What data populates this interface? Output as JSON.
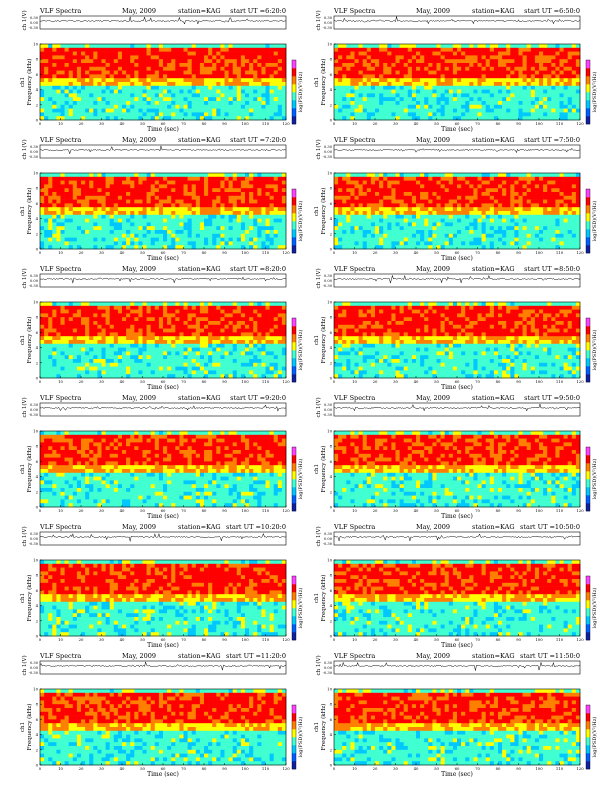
{
  "page": {
    "header_left": "VLF Spectra",
    "month": "May, 2009",
    "station": "station=KAG",
    "ut_prefix": "start  UT =",
    "ylabel_top": "ch 1(V)",
    "ylabel_spec": "ch1\nFrequency  (kHz)",
    "xlabel": "Time  (sec)",
    "cbar_label": "log(PSD)(V²/Hz)"
  },
  "colors": {
    "spectrum_scale": [
      "#1020a0",
      "#0060ff",
      "#00c8ff",
      "#40ffd0",
      "#ffff00",
      "#ff8000",
      "#ff0000",
      "#ff40ff"
    ]
  },
  "chart_data": [
    {
      "type": "heatmap",
      "title": "VLF Spectra   May, 2009   station=KAG   start  UT =6:20:0",
      "ut": "6:20:0",
      "xlabel": "Time  (sec)",
      "ylabel": "Frequency  (kHz)",
      "xlim": [
        0,
        120
      ],
      "ylim": [
        0,
        10
      ],
      "xticks": [
        0,
        10,
        20,
        30,
        40,
        50,
        60,
        70,
        80,
        90,
        100,
        110,
        120
      ],
      "yticks": [
        0,
        2,
        4,
        6,
        8,
        10
      ],
      "top_ylabel": "ch 1(V)",
      "top_yticks": [
        "0.30",
        "0.00",
        "-0.30"
      ],
      "cbar_label": "log(PSD)(V²/Hz)"
    },
    {
      "type": "heatmap",
      "title": "VLF Spectra   May, 2009   station=KAG   start  UT =6:50:0",
      "ut": "6:50:0",
      "xlabel": "Time  (sec)",
      "ylabel": "Frequency  (kHz)",
      "xlim": [
        0,
        120
      ],
      "ylim": [
        0,
        10
      ],
      "xticks": [
        0,
        10,
        20,
        30,
        40,
        50,
        60,
        70,
        80,
        90,
        100,
        110,
        120
      ],
      "yticks": [
        0,
        2,
        4,
        6,
        8,
        10
      ],
      "top_ylabel": "ch 1(V)",
      "top_yticks": [
        "0.30",
        "0.00",
        "-0.30"
      ],
      "cbar_label": "log(PSD)(V²/Hz)"
    },
    {
      "type": "heatmap",
      "title": "VLF Spectra   May, 2009   station=KAG   start  UT =7:20:0",
      "ut": "7:20:0",
      "xlabel": "Time  (sec)",
      "ylabel": "Frequency  (kHz)",
      "xlim": [
        0,
        120
      ],
      "ylim": [
        0,
        10
      ],
      "xticks": [
        0,
        10,
        20,
        30,
        40,
        50,
        60,
        70,
        80,
        90,
        100,
        110,
        120
      ],
      "yticks": [
        0,
        2,
        4,
        6,
        8,
        10
      ],
      "top_ylabel": "ch 1(V)",
      "top_yticks": [
        "0.30",
        "0.00",
        "-0.30"
      ],
      "cbar_label": "log(PSD)(V²/Hz)"
    },
    {
      "type": "heatmap",
      "title": "VLF Spectra   May, 2009   station=KAG   start  UT =7:50:0",
      "ut": "7:50:0",
      "xlabel": "Time  (sec)",
      "ylabel": "Frequency  (kHz)",
      "xlim": [
        0,
        120
      ],
      "ylim": [
        0,
        10
      ],
      "xticks": [
        0,
        10,
        20,
        30,
        40,
        50,
        60,
        70,
        80,
        90,
        100,
        110,
        120
      ],
      "yticks": [
        0,
        2,
        4,
        6,
        8,
        10
      ],
      "top_ylabel": "ch 1(V)",
      "top_yticks": [
        "0.30",
        "0.00",
        "-0.30"
      ],
      "cbar_label": "log(PSD)(V²/Hz)"
    },
    {
      "type": "heatmap",
      "title": "VLF Spectra   May, 2009   station=KAG   start  UT =8:20:0",
      "ut": "8:20:0",
      "xlabel": "Time  (sec)",
      "ylabel": "Frequency  (kHz)",
      "xlim": [
        0,
        120
      ],
      "ylim": [
        0,
        10
      ],
      "xticks": [
        0,
        10,
        20,
        30,
        40,
        50,
        60,
        70,
        80,
        90,
        100,
        110,
        120
      ],
      "yticks": [
        0,
        2,
        4,
        6,
        8,
        10
      ],
      "top_ylabel": "ch 1(V)",
      "top_yticks": [
        "0.30",
        "0.00",
        "-0.30"
      ],
      "cbar_label": "log(PSD)(V²/Hz)"
    },
    {
      "type": "heatmap",
      "title": "VLF Spectra   May, 2009   station=KAG   start  UT =8:50:0",
      "ut": "8:50:0",
      "xlabel": "Time  (sec)",
      "ylabel": "Frequency  (kHz)",
      "xlim": [
        0,
        120
      ],
      "ylim": [
        0,
        10
      ],
      "xticks": [
        0,
        10,
        20,
        30,
        40,
        50,
        60,
        70,
        80,
        90,
        100,
        110,
        120
      ],
      "yticks": [
        0,
        2,
        4,
        6,
        8,
        10
      ],
      "top_ylabel": "ch 1(V)",
      "top_yticks": [
        "0.30",
        "0.00",
        "-0.30"
      ],
      "cbar_label": "log(PSD)(V²/Hz)"
    },
    {
      "type": "heatmap",
      "title": "VLF Spectra   May, 2009   station=KAG   start  UT =9:20:0",
      "ut": "9:20:0",
      "xlabel": "Time  (sec)",
      "ylabel": "Frequency  (kHz)",
      "xlim": [
        0,
        120
      ],
      "ylim": [
        0,
        10
      ],
      "xticks": [
        0,
        10,
        20,
        30,
        40,
        50,
        60,
        70,
        80,
        90,
        100,
        110,
        120
      ],
      "yticks": [
        0,
        2,
        4,
        6,
        8,
        10
      ],
      "top_ylabel": "ch 1(V)",
      "top_yticks": [
        "0.30",
        "0.00",
        "-0.30"
      ],
      "cbar_label": "log(PSD)(V²/Hz)"
    },
    {
      "type": "heatmap",
      "title": "VLF Spectra   May, 2009   station=KAG   start  UT =9:50:0",
      "ut": "9:50:0",
      "xlabel": "Time  (sec)",
      "ylabel": "Frequency  (kHz)",
      "xlim": [
        0,
        120
      ],
      "ylim": [
        0,
        10
      ],
      "xticks": [
        0,
        10,
        20,
        30,
        40,
        50,
        60,
        70,
        80,
        90,
        100,
        110,
        120
      ],
      "yticks": [
        0,
        2,
        4,
        6,
        8,
        10
      ],
      "top_ylabel": "ch 1(V)",
      "top_yticks": [
        "0.30",
        "0.00",
        "-0.30"
      ],
      "cbar_label": "log(PSD)(V²/Hz)"
    },
    {
      "type": "heatmap",
      "title": "VLF Spectra   May, 2009   station=KAG   start  UT =10:20:0",
      "ut": "10:20:0",
      "xlabel": "Time  (sec)",
      "ylabel": "Frequency  (kHz)",
      "xlim": [
        0,
        120
      ],
      "ylim": [
        0,
        10
      ],
      "xticks": [
        0,
        10,
        20,
        30,
        40,
        50,
        60,
        70,
        80,
        90,
        100,
        110,
        120
      ],
      "yticks": [
        0,
        2,
        4,
        6,
        8,
        10
      ],
      "top_ylabel": "ch 1(V)",
      "top_yticks": [
        "0.30",
        "0.00",
        "-0.30"
      ],
      "cbar_label": "log(PSD)(V²/Hz)"
    },
    {
      "type": "heatmap",
      "title": "VLF Spectra   May, 2009   station=KAG   start  UT =10:50:0",
      "ut": "10:50:0",
      "xlabel": "Time  (sec)",
      "ylabel": "Frequency  (kHz)",
      "xlim": [
        0,
        120
      ],
      "ylim": [
        0,
        10
      ],
      "xticks": [
        0,
        10,
        20,
        30,
        40,
        50,
        60,
        70,
        80,
        90,
        100,
        110,
        120
      ],
      "yticks": [
        0,
        2,
        4,
        6,
        8,
        10
      ],
      "top_ylabel": "ch 1(V)",
      "top_yticks": [
        "0.30",
        "0.00",
        "-0.30"
      ],
      "cbar_label": "log(PSD)(V²/Hz)"
    },
    {
      "type": "heatmap",
      "title": "VLF Spectra   May, 2009   station=KAG   start  UT =11:20:0",
      "ut": "11:20:0",
      "xlabel": "Time  (sec)",
      "ylabel": "Frequency  (kHz)",
      "xlim": [
        0,
        120
      ],
      "ylim": [
        0,
        10
      ],
      "xticks": [
        0,
        10,
        20,
        30,
        40,
        50,
        60,
        70,
        80,
        90,
        100,
        110,
        120
      ],
      "yticks": [
        0,
        2,
        4,
        6,
        8,
        10
      ],
      "top_ylabel": "ch 1(V)",
      "top_yticks": [
        "0.30",
        "0.00",
        "-0.30"
      ],
      "cbar_label": "log(PSD)(V²/Hz)"
    },
    {
      "type": "heatmap",
      "title": "VLF Spectra   May, 2009   station=KAG   start  UT =11:50:0",
      "ut": "11:50:0",
      "xlabel": "Time  (sec)",
      "ylabel": "Frequency  (kHz)",
      "xlim": [
        0,
        120
      ],
      "ylim": [
        0,
        10
      ],
      "xticks": [
        0,
        10,
        20,
        30,
        40,
        50,
        60,
        70,
        80,
        90,
        100,
        110,
        120
      ],
      "yticks": [
        0,
        2,
        4,
        6,
        8,
        10
      ],
      "top_ylabel": "ch 1(V)",
      "top_yticks": [
        "0.30",
        "0.00",
        "-0.30"
      ],
      "cbar_label": "log(PSD)(V²/Hz)"
    }
  ]
}
